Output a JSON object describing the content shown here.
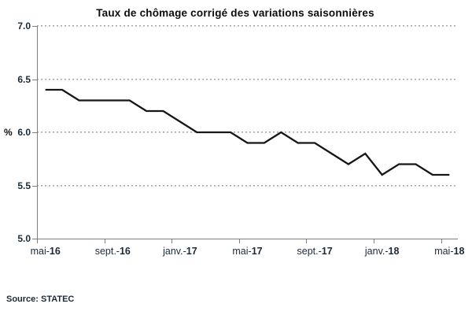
{
  "chart": {
    "title": "Taux de chômage corrigé des variations saisonnières",
    "source": "Source: STATEC"
  },
  "chart_data": {
    "type": "line",
    "title": "Taux de chômage corrigé des variations saisonnières",
    "xlabel": "",
    "ylabel": "%",
    "ylim": [
      5.0,
      7.0
    ],
    "grid": "horizontal-dotted",
    "legend": "none",
    "line_color": "#161616",
    "grid_color": "#a8a8a8",
    "axis_color": "#7f7f7f",
    "text_color": "#1b2a3a",
    "x": [
      "mai-16",
      "juin-16",
      "juil.-16",
      "août-16",
      "sept.-16",
      "oct.-16",
      "nov.-16",
      "déc.-16",
      "janv.-17",
      "févr.-17",
      "mars-17",
      "avr.-17",
      "mai-17",
      "juin-17",
      "juil.-17",
      "août-17",
      "sept.-17",
      "oct.-17",
      "nov.-17",
      "déc.-17",
      "janv.-18",
      "févr.-18",
      "mars-18",
      "avr.-18",
      "mai-18"
    ],
    "values": [
      6.4,
      6.4,
      6.3,
      6.3,
      6.3,
      6.3,
      6.2,
      6.2,
      6.1,
      6.0,
      6.0,
      6.0,
      5.9,
      5.9,
      6.0,
      5.9,
      5.9,
      5.8,
      5.7,
      5.8,
      5.6,
      5.7,
      5.7,
      5.6,
      5.6
    ],
    "y_ticks": [
      7.0,
      6.5,
      6.0,
      5.5,
      5.0
    ],
    "y_tick_labels": [
      "7.0",
      "6.5",
      "6.0",
      "5.5",
      "5.0"
    ],
    "x_tick_labels": [
      {
        "prefix": "mai-",
        "year": "16"
      },
      {
        "prefix": "sept.-",
        "year": "16"
      },
      {
        "prefix": "janv.-",
        "year": "17"
      },
      {
        "prefix": "mai-",
        "year": "17"
      },
      {
        "prefix": "sept.-",
        "year": "17"
      },
      {
        "prefix": "janv.-",
        "year": "18"
      },
      {
        "prefix": "mai-",
        "year": "18"
      }
    ]
  }
}
